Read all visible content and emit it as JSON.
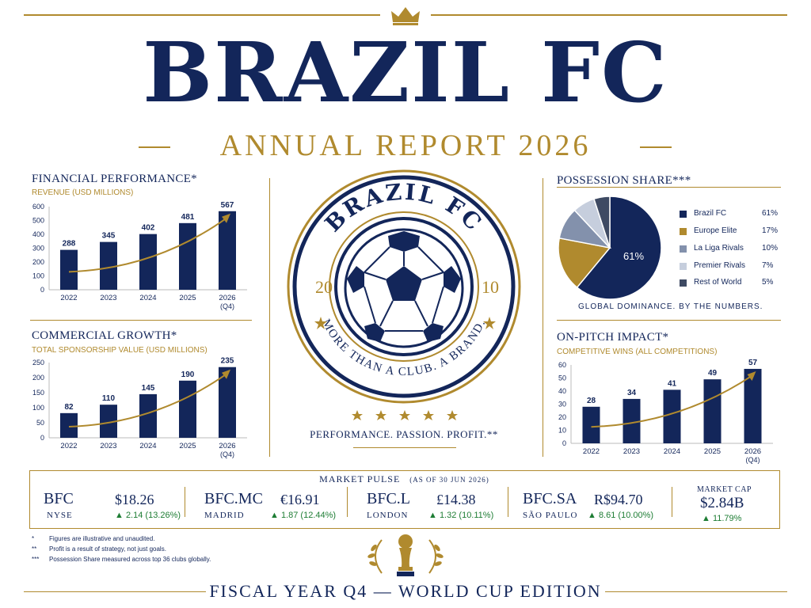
{
  "header": {
    "brand": "BRAZIL FC",
    "report": "ANNUAL REPORT 2026"
  },
  "colors": {
    "navy": "#13265a",
    "gold": "#b08a2e",
    "green": "#1e7d34"
  },
  "crest": {
    "top_text": "BRAZIL FC",
    "bottom_text": "MORE THAN A CLUB. A BRAND.",
    "left_year": "20",
    "right_year": "10",
    "tagline": "PERFORMANCE. PASSION. PROFIT.**"
  },
  "chart_data": [
    {
      "type": "bar",
      "title": "FINANCIAL PERFORMANCE*",
      "subtitle": "REVENUE (USD MILLIONS)",
      "categories": [
        "2022",
        "2023",
        "2024",
        "2025",
        "2026"
      ],
      "category_notes": [
        "",
        "",
        "",
        "",
        "(Q4)"
      ],
      "values": [
        288,
        345,
        402,
        481,
        567
      ],
      "yticks": [
        0,
        100,
        200,
        300,
        400,
        500,
        600
      ],
      "ylim": [
        0,
        600
      ],
      "trend_arrow": true
    },
    {
      "type": "bar",
      "title": "COMMERCIAL GROWTH*",
      "subtitle": "TOTAL SPONSORSHIP VALUE (USD MILLIONS)",
      "categories": [
        "2022",
        "2023",
        "2024",
        "2025",
        "2026"
      ],
      "category_notes": [
        "",
        "",
        "",
        "",
        "(Q4)"
      ],
      "values": [
        82,
        110,
        145,
        190,
        235
      ],
      "yticks": [
        0,
        50,
        100,
        150,
        200,
        250
      ],
      "ylim": [
        0,
        250
      ],
      "trend_arrow": true
    },
    {
      "type": "pie",
      "title": "POSSESSION SHARE***",
      "labels": [
        "Brazil FC",
        "Europe Elite",
        "La Liga Rivals",
        "Premier Rivals",
        "Rest of World"
      ],
      "values": [
        61,
        17,
        10,
        7,
        5
      ],
      "value_labels": [
        "61%",
        "17%",
        "10%",
        "7%",
        "5%"
      ],
      "colors": [
        "#13265a",
        "#b08a2e",
        "#8391ac",
        "#c6cedd",
        "#3e4a63"
      ],
      "center_label": "61%",
      "caption": "GLOBAL DOMINANCE. BY THE NUMBERS."
    },
    {
      "type": "bar",
      "title": "ON-PITCH IMPACT*",
      "subtitle": "COMPETITIVE WINS (ALL COMPETITIONS)",
      "categories": [
        "2022",
        "2023",
        "2024",
        "2025",
        "2026"
      ],
      "category_notes": [
        "",
        "",
        "",
        "",
        "(Q4)"
      ],
      "values": [
        28,
        34,
        41,
        49,
        57
      ],
      "yticks": [
        0,
        10,
        20,
        30,
        40,
        50,
        60
      ],
      "ylim": [
        0,
        60
      ],
      "trend_arrow": true
    }
  ],
  "market": {
    "title": "MARKET PULSE",
    "asof": "(AS OF 30 JUN 2026)",
    "stocks": [
      {
        "ticker": "BFC",
        "exchange": "NYSE",
        "price": "$18.26",
        "change": "▲ 2.14 (13.26%)"
      },
      {
        "ticker": "BFC.MC",
        "exchange": "MADRID",
        "price": "€16.91",
        "change": "▲ 1.87 (12.44%)"
      },
      {
        "ticker": "BFC.L",
        "exchange": "LONDON",
        "price": "£14.38",
        "change": "▲ 1.32 (10.11%)"
      },
      {
        "ticker": "BFC.SA",
        "exchange": "SÃO PAULO",
        "price": "R$94.70",
        "change": "▲ 8.61 (10.00%)"
      }
    ],
    "cap_label": "MARKET CAP",
    "cap_value": "$2.84B",
    "cap_change": "▲ 11.79%"
  },
  "notes": [
    {
      "mark": "*",
      "text": "Figures are illustrative and unaudited."
    },
    {
      "mark": "**",
      "text": "Profit is a result of strategy, not just goals."
    },
    {
      "mark": "***",
      "text": "Possession Share measured across top 36 clubs globally."
    }
  ],
  "footer": "FISCAL YEAR Q4 — WORLD CUP EDITION"
}
